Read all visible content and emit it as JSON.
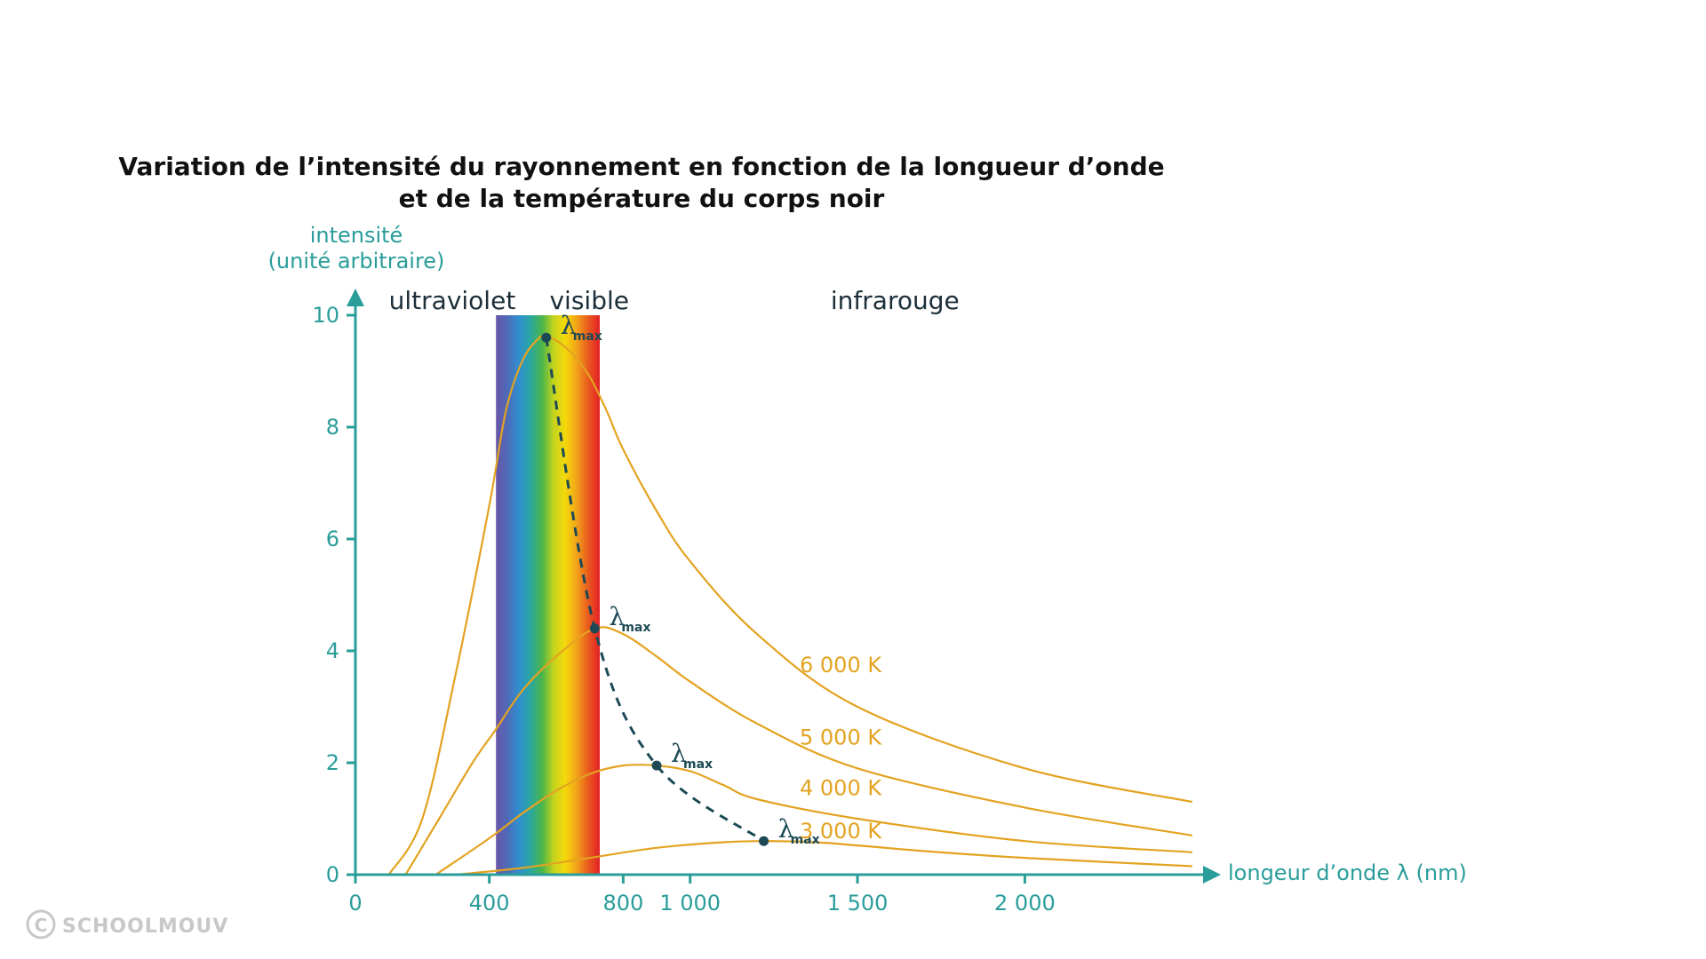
{
  "chart_data": {
    "type": "line",
    "title_line1": "Variation de l’intensité du rayonnement en fonction de la longueur d’onde",
    "title_line2": "et de la température du corps noir",
    "ylabel_line1": "intensité",
    "ylabel_line2": "(unité arbitraire)",
    "xlabel": "longeur d’onde λ (nm)",
    "xlim": [
      0,
      2500
    ],
    "ylim": [
      0,
      10
    ],
    "x_ticks": [
      {
        "value": 0,
        "label": "0"
      },
      {
        "value": 400,
        "label": "400"
      },
      {
        "value": 800,
        "label": "800"
      },
      {
        "value": 1000,
        "label": "1 000"
      },
      {
        "value": 1500,
        "label": "1 500"
      },
      {
        "value": 2000,
        "label": "2 000"
      }
    ],
    "y_ticks": [
      {
        "value": 0,
        "label": "0"
      },
      {
        "value": 2,
        "label": "2"
      },
      {
        "value": 4,
        "label": "4"
      },
      {
        "value": 6,
        "label": "6"
      },
      {
        "value": 8,
        "label": "8"
      },
      {
        "value": 10,
        "label": "10"
      }
    ],
    "regions": [
      {
        "label": "ultraviolet",
        "x": 100
      },
      {
        "label": "visible",
        "x": 580
      },
      {
        "label": "infrarouge",
        "x": 1420
      }
    ],
    "visible_band": [
      420,
      730
    ],
    "series": [
      {
        "name": "6 000 K",
        "temperature": 6000,
        "peak": {
          "x": 570,
          "y": 9.6
        },
        "x": [
          100,
          200,
          300,
          400,
          450,
          500,
          550,
          570,
          600,
          650,
          700,
          750,
          800,
          900,
          1000,
          1200,
          1500,
          2000,
          2500
        ],
        "y": [
          0,
          1.0,
          3.6,
          6.6,
          8.3,
          9.2,
          9.6,
          9.6,
          9.55,
          9.3,
          8.9,
          8.3,
          7.6,
          6.5,
          5.6,
          4.3,
          3.0,
          1.9,
          1.3
        ]
      },
      {
        "name": "5 000 K",
        "temperature": 5000,
        "peak": {
          "x": 715,
          "y": 4.4
        },
        "x": [
          150,
          250,
          350,
          420,
          500,
          600,
          715,
          800,
          900,
          1000,
          1200,
          1500,
          2000,
          2500
        ],
        "y": [
          0,
          1.0,
          2.0,
          2.6,
          3.3,
          3.9,
          4.4,
          4.3,
          3.9,
          3.45,
          2.7,
          1.9,
          1.2,
          0.7
        ]
      },
      {
        "name": "4 000 K",
        "temperature": 4000,
        "peak": {
          "x": 900,
          "y": 1.95
        },
        "x": [
          240,
          400,
          500,
          600,
          700,
          800,
          900,
          1000,
          1100,
          1200,
          1500,
          2000,
          2500
        ],
        "y": [
          0,
          0.65,
          1.1,
          1.5,
          1.8,
          1.95,
          1.95,
          1.85,
          1.6,
          1.35,
          1.0,
          0.6,
          0.4
        ]
      },
      {
        "name": "3 000 K",
        "temperature": 3000,
        "peak": {
          "x": 1220,
          "y": 0.6
        },
        "x": [
          300,
          500,
          700,
          900,
          1100,
          1220,
          1400,
          1700,
          2000,
          2500
        ],
        "y": [
          0,
          0.12,
          0.3,
          0.48,
          0.58,
          0.6,
          0.57,
          0.42,
          0.3,
          0.15
        ]
      }
    ],
    "series_labels": [
      {
        "name": "6 000 K",
        "x": 1460,
        "y": 3.75
      },
      {
        "name": "5 000 K",
        "x": 1460,
        "y": 2.45
      },
      {
        "name": "4 000 K",
        "x": 1460,
        "y": 1.55
      },
      {
        "name": "3 000 K",
        "x": 1460,
        "y": 0.78
      }
    ],
    "peak_symbol": "λ",
    "peak_subscript": "max",
    "watermark": "SCHOOLMOUV",
    "colors": {
      "axis": "#2a9d9a",
      "curve": "#e3a321",
      "peak": "#1d4a55",
      "title": "#111111",
      "spectrum": [
        "#6a55a8",
        "#4d6bb8",
        "#2f8fd0",
        "#2aa7a0",
        "#49b54a",
        "#c4d41e",
        "#f4d90a",
        "#f2a31a",
        "#e95a1e",
        "#e31f26"
      ]
    }
  }
}
